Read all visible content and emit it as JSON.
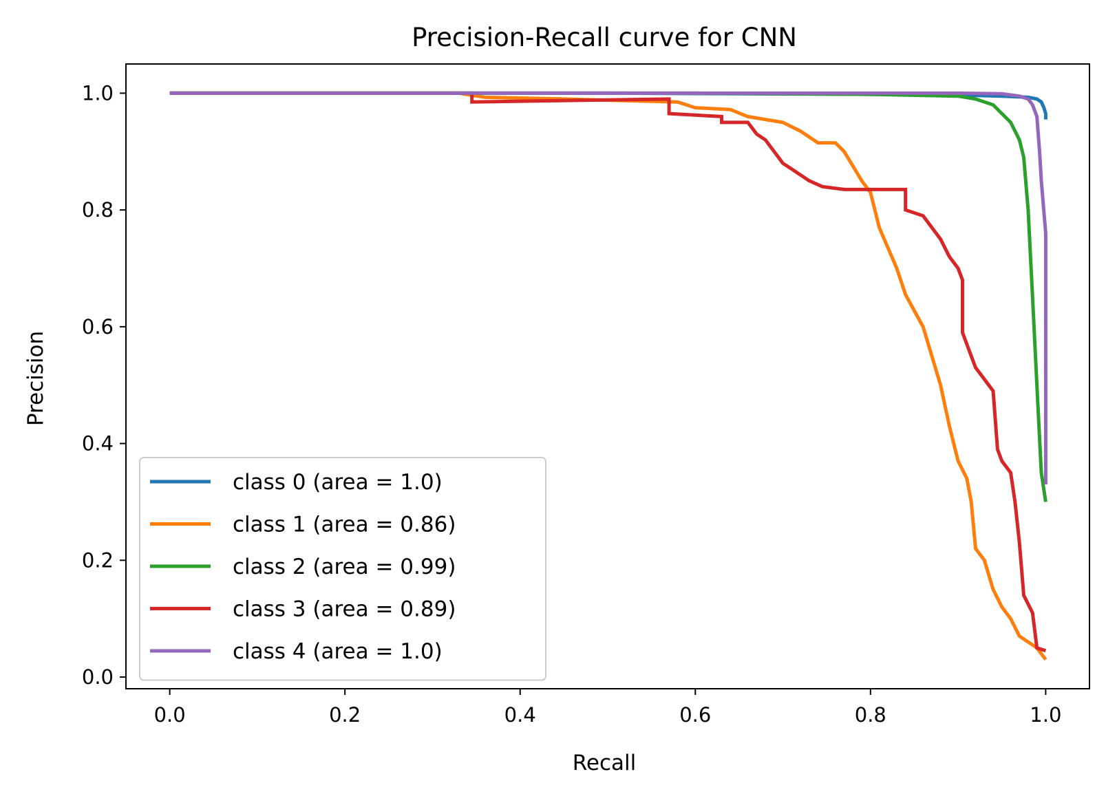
{
  "chart_data": {
    "type": "line",
    "title": "Precision-Recall curve for CNN",
    "xlabel": "Recall",
    "ylabel": "Precision",
    "xlim": [
      -0.05,
      1.05
    ],
    "ylim": [
      -0.02,
      1.05
    ],
    "xticks": [
      "0.0",
      "0.2",
      "0.4",
      "0.6",
      "0.8",
      "1.0"
    ],
    "yticks": [
      "0.0",
      "0.2",
      "0.4",
      "0.6",
      "0.8",
      "1.0"
    ],
    "legend_position": "lower-left",
    "grid": false,
    "series": [
      {
        "name": "class 0 (area = 1.0)",
        "color": "#1f77b4",
        "points": [
          [
            0.0,
            1.0
          ],
          [
            0.5,
            1.0
          ],
          [
            0.8,
            0.998
          ],
          [
            0.9,
            0.997
          ],
          [
            0.95,
            0.995
          ],
          [
            0.98,
            0.993
          ],
          [
            0.99,
            0.99
          ],
          [
            0.995,
            0.985
          ],
          [
            0.998,
            0.975
          ],
          [
            1.0,
            0.965
          ],
          [
            1.0,
            0.955
          ]
        ]
      },
      {
        "name": "class 1 (area = 0.86)",
        "color": "#ff7f0e",
        "points": [
          [
            0.0,
            1.0
          ],
          [
            0.33,
            1.0
          ],
          [
            0.36,
            0.993
          ],
          [
            0.45,
            0.99
          ],
          [
            0.5,
            0.988
          ],
          [
            0.58,
            0.985
          ],
          [
            0.6,
            0.975
          ],
          [
            0.64,
            0.972
          ],
          [
            0.66,
            0.96
          ],
          [
            0.7,
            0.95
          ],
          [
            0.72,
            0.935
          ],
          [
            0.74,
            0.915
          ],
          [
            0.76,
            0.915
          ],
          [
            0.77,
            0.9
          ],
          [
            0.79,
            0.85
          ],
          [
            0.8,
            0.83
          ],
          [
            0.81,
            0.77
          ],
          [
            0.83,
            0.7
          ],
          [
            0.84,
            0.655
          ],
          [
            0.86,
            0.6
          ],
          [
            0.87,
            0.55
          ],
          [
            0.88,
            0.5
          ],
          [
            0.89,
            0.43
          ],
          [
            0.9,
            0.37
          ],
          [
            0.91,
            0.34
          ],
          [
            0.915,
            0.3
          ],
          [
            0.92,
            0.22
          ],
          [
            0.93,
            0.2
          ],
          [
            0.94,
            0.15
          ],
          [
            0.95,
            0.12
          ],
          [
            0.96,
            0.1
          ],
          [
            0.97,
            0.07
          ],
          [
            0.98,
            0.06
          ],
          [
            0.99,
            0.05
          ],
          [
            1.0,
            0.03
          ]
        ]
      },
      {
        "name": "class 2 (area = 0.99)",
        "color": "#2ca02c",
        "points": [
          [
            0.0,
            1.0
          ],
          [
            0.6,
            1.0
          ],
          [
            0.8,
            0.998
          ],
          [
            0.9,
            0.995
          ],
          [
            0.92,
            0.99
          ],
          [
            0.94,
            0.98
          ],
          [
            0.95,
            0.965
          ],
          [
            0.96,
            0.95
          ],
          [
            0.97,
            0.92
          ],
          [
            0.975,
            0.89
          ],
          [
            0.98,
            0.8
          ],
          [
            0.985,
            0.65
          ],
          [
            0.99,
            0.5
          ],
          [
            0.995,
            0.35
          ],
          [
            1.0,
            0.3
          ]
        ]
      },
      {
        "name": "class 3 (area = 0.89)",
        "color": "#d62728",
        "points": [
          [
            0.0,
            1.0
          ],
          [
            0.345,
            1.0
          ],
          [
            0.345,
            0.985
          ],
          [
            0.57,
            0.99
          ],
          [
            0.57,
            0.965
          ],
          [
            0.63,
            0.96
          ],
          [
            0.63,
            0.95
          ],
          [
            0.66,
            0.95
          ],
          [
            0.67,
            0.93
          ],
          [
            0.68,
            0.92
          ],
          [
            0.69,
            0.9
          ],
          [
            0.7,
            0.88
          ],
          [
            0.71,
            0.87
          ],
          [
            0.72,
            0.86
          ],
          [
            0.73,
            0.85
          ],
          [
            0.745,
            0.84
          ],
          [
            0.77,
            0.835
          ],
          [
            0.8,
            0.835
          ],
          [
            0.84,
            0.835
          ],
          [
            0.84,
            0.8
          ],
          [
            0.86,
            0.79
          ],
          [
            0.87,
            0.77
          ],
          [
            0.88,
            0.75
          ],
          [
            0.89,
            0.72
          ],
          [
            0.9,
            0.7
          ],
          [
            0.905,
            0.68
          ],
          [
            0.905,
            0.59
          ],
          [
            0.91,
            0.57
          ],
          [
            0.92,
            0.53
          ],
          [
            0.93,
            0.51
          ],
          [
            0.94,
            0.49
          ],
          [
            0.945,
            0.39
          ],
          [
            0.95,
            0.37
          ],
          [
            0.96,
            0.35
          ],
          [
            0.965,
            0.3
          ],
          [
            0.97,
            0.23
          ],
          [
            0.975,
            0.14
          ],
          [
            0.985,
            0.11
          ],
          [
            0.99,
            0.05
          ],
          [
            1.0,
            0.045
          ]
        ]
      },
      {
        "name": "class 4 (area = 1.0)",
        "color": "#9467bd",
        "points": [
          [
            0.0,
            1.0
          ],
          [
            0.8,
            1.0
          ],
          [
            0.9,
            1.0
          ],
          [
            0.95,
            0.999
          ],
          [
            0.97,
            0.995
          ],
          [
            0.98,
            0.99
          ],
          [
            0.985,
            0.98
          ],
          [
            0.99,
            0.96
          ],
          [
            0.993,
            0.9
          ],
          [
            0.995,
            0.85
          ],
          [
            1.0,
            0.76
          ],
          [
            1.0,
            0.33
          ]
        ]
      }
    ]
  }
}
